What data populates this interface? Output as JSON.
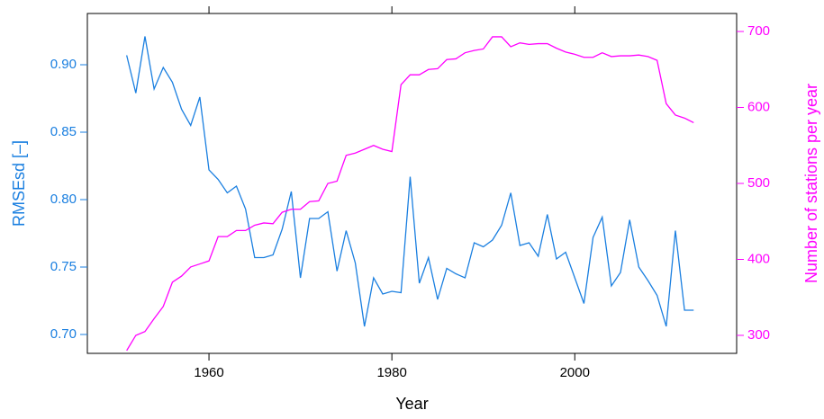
{
  "chart_data": {
    "type": "line",
    "x_label": "Year",
    "y_label": "RMSEsd [–]",
    "y2_label": "Number of stations per year",
    "x": [
      1951,
      1952,
      1953,
      1954,
      1955,
      1956,
      1957,
      1958,
      1959,
      1960,
      1961,
      1962,
      1963,
      1964,
      1965,
      1966,
      1967,
      1968,
      1969,
      1970,
      1971,
      1972,
      1973,
      1974,
      1975,
      1976,
      1977,
      1978,
      1979,
      1980,
      1981,
      1982,
      1983,
      1984,
      1985,
      1986,
      1987,
      1988,
      1989,
      1990,
      1991,
      1992,
      1993,
      1994,
      1995,
      1996,
      1997,
      1998,
      1999,
      2000,
      2001,
      2002,
      2003,
      2004,
      2005,
      2006,
      2007,
      2008,
      2009,
      2010,
      2011,
      2012,
      2013
    ],
    "series": [
      {
        "name": "RMSEsd [–]",
        "color": "#1a7fe0",
        "values": [
          0.907,
          0.879,
          0.921,
          0.882,
          0.898,
          0.887,
          0.867,
          0.855,
          0.876,
          0.822,
          0.815,
          0.805,
          0.81,
          0.793,
          0.757,
          0.757,
          0.759,
          0.778,
          0.806,
          0.742,
          0.786,
          0.786,
          0.791,
          0.747,
          0.777,
          0.753,
          0.706,
          0.742,
          0.73,
          0.732,
          0.731,
          0.817,
          0.738,
          0.757,
          0.726,
          0.749,
          0.745,
          0.742,
          0.768,
          0.765,
          0.77,
          0.781,
          0.805,
          0.766,
          0.768,
          0.758,
          0.789,
          0.756,
          0.761,
          0.742,
          0.723,
          0.772,
          0.787,
          0.736,
          0.746,
          0.785,
          0.75,
          0.74,
          0.729,
          0.706,
          0.777,
          0.718,
          0.718
        ]
      },
      {
        "name": "Number of stations per year",
        "color": "#ff00ff",
        "axis": "y2",
        "values": [
          280,
          300,
          305,
          322,
          338,
          370,
          378,
          390,
          394,
          398,
          430,
          430,
          438,
          438,
          445,
          448,
          447,
          462,
          466,
          466,
          476,
          477,
          500,
          503,
          537,
          540,
          545,
          550,
          545,
          542,
          630,
          643,
          643,
          650,
          651,
          663,
          664,
          672,
          675,
          677,
          693,
          693,
          680,
          685,
          683,
          684,
          684,
          678,
          673,
          670,
          666,
          666,
          672,
          667,
          668,
          668,
          669,
          667,
          662,
          605,
          590,
          586,
          580
        ]
      }
    ],
    "xlim": [
      1946.7,
      2017.7
    ],
    "xticks": [
      1960,
      1980,
      2000
    ],
    "ylim": [
      0.686,
      0.938
    ],
    "yticks": [
      {
        "value": 0.7,
        "label": "0.70"
      },
      0.75,
      {
        "value": 0.8,
        "label": "0.80"
      },
      0.85,
      {
        "value": 0.9,
        "label": "0.90"
      }
    ],
    "y2lim": [
      276.3,
      723.7
    ],
    "y2ticks": [
      300,
      400,
      500,
      600,
      700
    ]
  }
}
